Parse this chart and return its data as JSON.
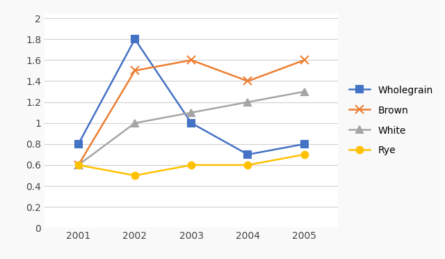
{
  "years": [
    2001,
    2002,
    2003,
    2004,
    2005
  ],
  "series": {
    "Wholegrain": {
      "values": [
        0.8,
        1.8,
        1.0,
        0.7,
        0.8
      ],
      "color": "#4472C4",
      "marker": "s",
      "markersize": 7
    },
    "Brown": {
      "values": [
        0.6,
        1.5,
        1.6,
        1.4,
        1.6
      ],
      "color": "#ED7D31",
      "marker": "x",
      "markersize": 8
    },
    "White": {
      "values": [
        0.6,
        1.0,
        1.1,
        1.2,
        1.3
      ],
      "color": "#A5A5A5",
      "marker": "^",
      "markersize": 7
    },
    "Rye": {
      "values": [
        0.6,
        0.5,
        0.6,
        0.6,
        0.7
      ],
      "color": "#FFC000",
      "marker": "o",
      "markersize": 7
    }
  },
  "linewidth": 1.8,
  "ylim": [
    0,
    2.05
  ],
  "yticks": [
    0,
    0.2,
    0.4,
    0.6,
    0.8,
    1.0,
    1.2,
    1.4,
    1.6,
    1.8,
    2.0
  ],
  "background_color": "#f9f9f9",
  "plot_bg_color": "#ffffff",
  "grid_color": "#d0d0d0",
  "legend_order": [
    "Wholegrain",
    "Brown",
    "White",
    "Rye"
  ],
  "tick_fontsize": 10,
  "legend_fontsize": 10
}
